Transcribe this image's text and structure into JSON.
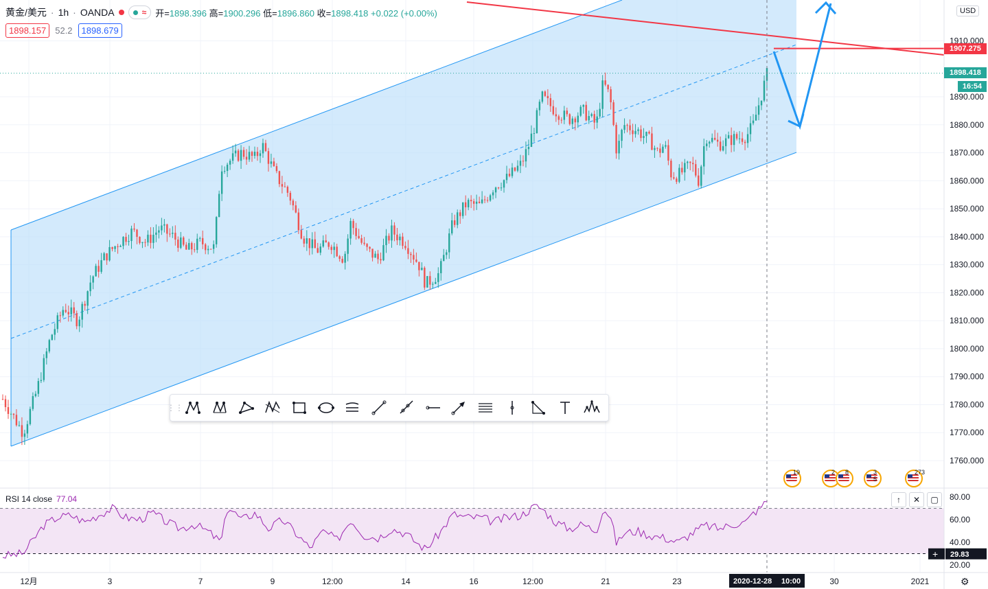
{
  "header": {
    "symbol": "黄金/美元",
    "interval": "1h",
    "broker": "OANDA",
    "ohlc_open_label": "开=",
    "open": "1898.396",
    "ohlc_high_label": "高=",
    "high": "1900.296",
    "ohlc_low_label": "低=",
    "low": "1896.860",
    "ohlc_close_label": "收=",
    "close": "1898.418",
    "change": "+0.022 (+0.00%)",
    "bid": "1898.157",
    "spread": "52.2",
    "ask": "1898.679"
  },
  "price_axis": {
    "currency": "USD",
    "ticks": [
      "1910.000",
      "1890.000",
      "1880.000",
      "1870.000",
      "1860.000",
      "1850.000",
      "1840.000",
      "1830.000",
      "1820.000",
      "1810.000",
      "1800.000",
      "1790.000",
      "1780.000",
      "1770.000",
      "1760.000"
    ],
    "current_price": "1898.418",
    "countdown": "16:54",
    "line_price": "1907.275"
  },
  "time_axis": {
    "ticks": [
      "12月",
      "3",
      "7",
      "9",
      "12:00",
      "14",
      "16",
      "12:00",
      "21",
      "23",
      "30",
      "2021"
    ],
    "crosshair_label": "2020-12-28",
    "crosshair_time": "10:00"
  },
  "rsi": {
    "label": "RSI 14 close",
    "value": "77.04",
    "ticks": [
      "80.00",
      "60.00",
      "40.00",
      "20.00"
    ],
    "cursor_value": "29.83",
    "upper": 70,
    "lower": 30
  },
  "events": [
    {
      "count": "19"
    },
    {
      "count": "2"
    },
    {
      "count": "8"
    },
    {
      "count": "3"
    },
    {
      "count": "5"
    },
    {
      "count": "273"
    }
  ],
  "toolbar": {
    "tools": [
      "xabcd-pattern",
      "cypher-pattern",
      "triangle-pattern",
      "abcd-pattern",
      "rectangle",
      "ellipse",
      "pitchfork",
      "trend-line",
      "ray",
      "horizontal-ray",
      "arrow",
      "parallel-channel",
      "vertical-line",
      "fib-extension",
      "text",
      "head-shoulders"
    ]
  },
  "colors": {
    "up": "#26a69a",
    "down": "#ef5350",
    "channel_fill": "#bbdefb",
    "channel_line": "#2196f3",
    "resistance": "#f23645",
    "rsi": "#9c27b0",
    "rsi_band": "#f3e5f5"
  },
  "chart_data": {
    "type": "candlestick",
    "y_unit": "USD",
    "ylim": [
      1752,
      1920
    ],
    "last_close": 1898.418,
    "highlighted_level": 1907.275,
    "close_path": [
      [
        0,
        1782
      ],
      [
        3,
        1770
      ],
      [
        5,
        1785
      ],
      [
        7,
        1804
      ],
      [
        9,
        1815
      ],
      [
        11,
        1810
      ],
      [
        13,
        1825
      ],
      [
        15,
        1833
      ],
      [
        17,
        1838
      ],
      [
        19,
        1842
      ],
      [
        21,
        1838
      ],
      [
        23,
        1843
      ],
      [
        25,
        1840
      ],
      [
        27,
        1835
      ],
      [
        29,
        1838
      ],
      [
        31,
        1836
      ],
      [
        32,
        1865
      ],
      [
        35,
        1870
      ],
      [
        37,
        1868
      ],
      [
        38,
        1873
      ],
      [
        40,
        1862
      ],
      [
        42,
        1855
      ],
      [
        44,
        1840
      ],
      [
        46,
        1835
      ],
      [
        48,
        1838
      ],
      [
        50,
        1832
      ],
      [
        51,
        1845
      ],
      [
        53,
        1836
      ],
      [
        55,
        1832
      ],
      [
        57,
        1842
      ],
      [
        59,
        1838
      ],
      [
        61,
        1830
      ],
      [
        62,
        1823
      ],
      [
        64,
        1827
      ],
      [
        66,
        1845
      ],
      [
        68,
        1852
      ],
      [
        70,
        1851
      ],
      [
        72,
        1858
      ],
      [
        74,
        1861
      ],
      [
        76,
        1866
      ],
      [
        77,
        1872
      ],
      [
        78,
        1880
      ],
      [
        79,
        1890
      ],
      [
        81,
        1885
      ],
      [
        83,
        1882
      ],
      [
        85,
        1885
      ],
      [
        87,
        1880
      ],
      [
        88,
        1895
      ],
      [
        89,
        1890
      ],
      [
        90,
        1870
      ],
      [
        91,
        1880
      ],
      [
        93,
        1878
      ],
      [
        95,
        1874
      ],
      [
        96,
        1870
      ],
      [
        97,
        1873
      ],
      [
        98,
        1862
      ],
      [
        99,
        1862
      ],
      [
        101,
        1866
      ],
      [
        102,
        1860
      ],
      [
        103,
        1876
      ],
      [
        105,
        1873
      ],
      [
        107,
        1875
      ],
      [
        109,
        1876
      ],
      [
        110,
        1880
      ],
      [
        111,
        1889
      ],
      [
        112,
        1898
      ]
    ],
    "rsi_path": [
      [
        0,
        28
      ],
      [
        3,
        30
      ],
      [
        6,
        55
      ],
      [
        8,
        62
      ],
      [
        10,
        64
      ],
      [
        12,
        58
      ],
      [
        14,
        64
      ],
      [
        16,
        70
      ],
      [
        18,
        62
      ],
      [
        20,
        60
      ],
      [
        22,
        66
      ],
      [
        24,
        58
      ],
      [
        26,
        52
      ],
      [
        28,
        56
      ],
      [
        30,
        50
      ],
      [
        32,
        40
      ],
      [
        33,
        72
      ],
      [
        35,
        60
      ],
      [
        37,
        66
      ],
      [
        39,
        52
      ],
      [
        41,
        60
      ],
      [
        43,
        48
      ],
      [
        45,
        35
      ],
      [
        47,
        50
      ],
      [
        49,
        42
      ],
      [
        51,
        60
      ],
      [
        53,
        46
      ],
      [
        55,
        44
      ],
      [
        57,
        52
      ],
      [
        59,
        48
      ],
      [
        61,
        38
      ],
      [
        62,
        34
      ],
      [
        64,
        48
      ],
      [
        66,
        65
      ],
      [
        68,
        62
      ],
      [
        70,
        62
      ],
      [
        72,
        58
      ],
      [
        74,
        62
      ],
      [
        76,
        64
      ],
      [
        78,
        72
      ],
      [
        79,
        70
      ],
      [
        81,
        58
      ],
      [
        83,
        52
      ],
      [
        85,
        56
      ],
      [
        87,
        50
      ],
      [
        88,
        70
      ],
      [
        89,
        64
      ],
      [
        90,
        38
      ],
      [
        91,
        48
      ],
      [
        93,
        50
      ],
      [
        95,
        46
      ],
      [
        97,
        44
      ],
      [
        99,
        40
      ],
      [
        101,
        48
      ],
      [
        103,
        55
      ],
      [
        105,
        52
      ],
      [
        107,
        56
      ],
      [
        109,
        58
      ],
      [
        110,
        66
      ],
      [
        111,
        70
      ],
      [
        112,
        77
      ]
    ]
  }
}
